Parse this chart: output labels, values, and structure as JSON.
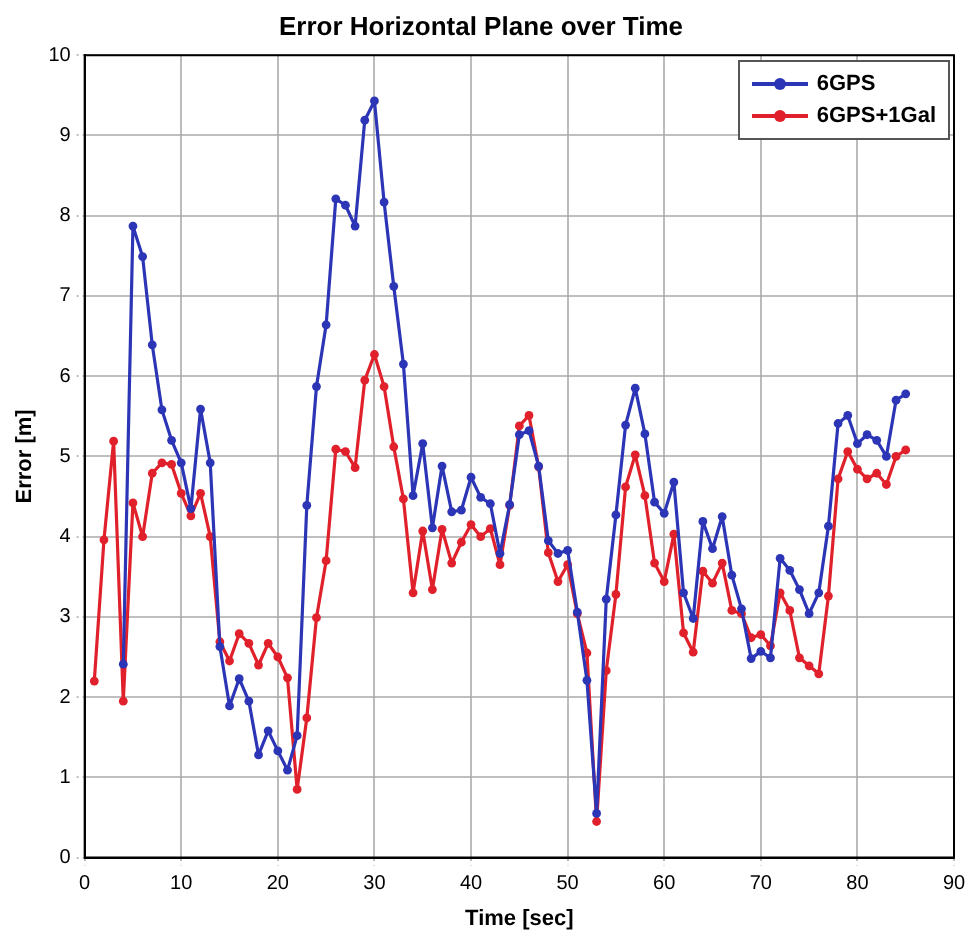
{
  "chart_data": {
    "type": "line",
    "title": "Error Horizontal Plane over Time",
    "xlabel": "Time [sec]",
    "ylabel": "Error [m]",
    "xlim": [
      0,
      90
    ],
    "xticks": [
      0,
      10,
      20,
      30,
      40,
      50,
      60,
      70,
      80,
      90
    ],
    "ylim": [
      0,
      10
    ],
    "yticks": [
      0,
      1,
      2,
      3,
      4,
      5,
      6,
      7,
      8,
      9,
      10
    ],
    "grid": true,
    "legend": "top right",
    "marker": "circle",
    "line_style": "solid",
    "series": [
      {
        "name": "6GPS",
        "color": "#2b35b5",
        "x": [
          4,
          5,
          6,
          7,
          8,
          9,
          10,
          11,
          12,
          13,
          14,
          15,
          16,
          17,
          18,
          19,
          20,
          21,
          22,
          23,
          24,
          25,
          26,
          27,
          28,
          29,
          30,
          31,
          32,
          33,
          34,
          35,
          36,
          37,
          38,
          39,
          40,
          41,
          42,
          43,
          44,
          45,
          46,
          47,
          48,
          49,
          50,
          51,
          52,
          53,
          54,
          55,
          56,
          57,
          58,
          59,
          60,
          61,
          62,
          63,
          64,
          65,
          66,
          67,
          68,
          69,
          70,
          71,
          72,
          73,
          74,
          75,
          76,
          77,
          78,
          79,
          80,
          81,
          82,
          83,
          84,
          85
        ],
        "values": [
          2.41,
          7.87,
          7.49,
          6.39,
          5.58,
          5.2,
          4.92,
          4.35,
          5.59,
          4.92,
          2.63,
          1.89,
          2.23,
          1.95,
          1.28,
          1.58,
          1.33,
          1.09,
          1.52,
          4.39,
          5.87,
          6.64,
          8.21,
          8.13,
          7.87,
          9.19,
          9.43,
          8.17,
          7.12,
          6.15,
          4.51,
          5.16,
          4.11,
          4.88,
          4.31,
          4.33,
          4.74,
          4.49,
          4.41,
          3.79,
          4.4,
          5.27,
          5.32,
          4.88,
          3.95,
          3.79,
          3.83,
          3.06,
          2.21,
          0.55,
          3.22,
          4.27,
          5.39,
          5.85,
          5.28,
          4.43,
          4.29,
          4.68,
          3.3,
          2.98,
          4.19,
          3.85,
          4.25,
          3.52,
          3.1,
          2.48,
          2.57,
          2.49,
          3.73,
          3.58,
          3.34,
          3.04,
          3.3,
          4.13,
          5.41,
          5.51,
          5.16,
          5.27,
          5.2,
          5.0,
          5.7,
          5.78
        ]
      },
      {
        "name": "6GPS+1Gal",
        "color": "#e0202a",
        "x": [
          1,
          2,
          3,
          4,
          5,
          6,
          7,
          8,
          9,
          10,
          11,
          12,
          13,
          14,
          15,
          16,
          17,
          18,
          19,
          20,
          21,
          22,
          23,
          24,
          25,
          26,
          27,
          28,
          29,
          30,
          31,
          32,
          33,
          34,
          35,
          36,
          37,
          38,
          39,
          40,
          41,
          42,
          43,
          44,
          45,
          46,
          47,
          48,
          49,
          50,
          51,
          52,
          53,
          54,
          55,
          56,
          57,
          58,
          59,
          60,
          61,
          62,
          63,
          64,
          65,
          66,
          67,
          68,
          69,
          70,
          71,
          72,
          73,
          74,
          75,
          76,
          77,
          78,
          79,
          80,
          81,
          82,
          83,
          84,
          85
        ],
        "values": [
          2.2,
          3.96,
          5.19,
          1.95,
          4.42,
          4.0,
          4.79,
          4.92,
          4.9,
          4.54,
          4.26,
          4.54,
          4.0,
          2.69,
          2.45,
          2.79,
          2.67,
          2.4,
          2.67,
          2.5,
          2.24,
          0.85,
          1.74,
          2.99,
          3.7,
          5.09,
          5.06,
          4.86,
          5.95,
          6.27,
          5.87,
          5.12,
          4.47,
          3.3,
          4.07,
          3.34,
          4.09,
          3.67,
          3.93,
          4.15,
          4.0,
          4.1,
          3.65,
          4.39,
          5.38,
          5.51,
          4.87,
          3.8,
          3.44,
          3.65,
          3.04,
          2.55,
          0.45,
          2.33,
          3.28,
          4.62,
          5.02,
          4.51,
          3.67,
          3.44,
          4.03,
          2.8,
          2.56,
          3.57,
          3.42,
          3.67,
          3.08,
          3.04,
          2.74,
          2.78,
          2.64,
          3.3,
          3.08,
          2.49,
          2.39,
          2.29,
          3.26,
          4.72,
          5.06,
          4.84,
          4.72,
          4.79,
          4.65,
          5.0,
          5.08
        ]
      }
    ]
  }
}
